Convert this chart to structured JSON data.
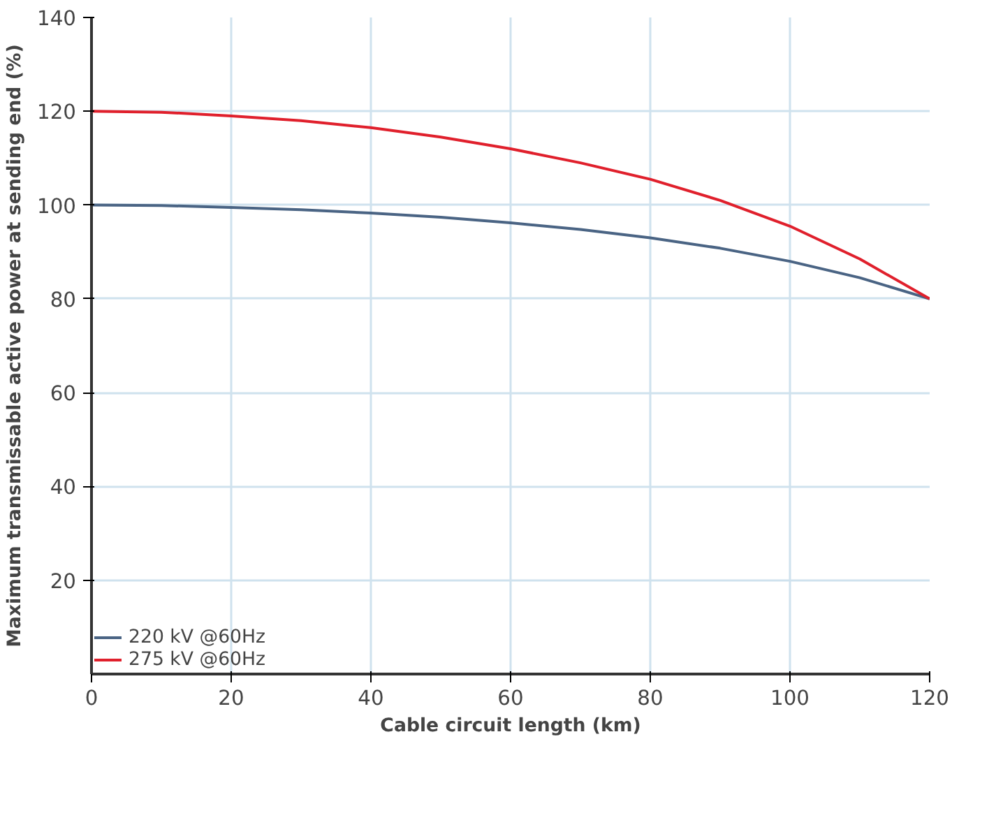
{
  "chart_data": {
    "type": "line",
    "xlabel": "Cable circuit length (km)",
    "ylabel": "Maximum transmissable active power at sending end (%)",
    "x": [
      0,
      10,
      20,
      30,
      40,
      50,
      60,
      70,
      80,
      90,
      100,
      110,
      120
    ],
    "series": [
      {
        "name": "220 kV @60Hz",
        "color": "#4a6484",
        "values": [
          100,
          99.9,
          99.5,
          99.0,
          98.3,
          97.4,
          96.2,
          94.8,
          93.0,
          90.8,
          88.0,
          84.5,
          80
        ]
      },
      {
        "name": "275 kV @60Hz",
        "color": "#e0202c",
        "values": [
          120,
          119.8,
          119,
          118,
          116.5,
          114.5,
          112,
          109,
          105.5,
          101,
          95.5,
          88.5,
          80
        ]
      }
    ],
    "xlim": [
      0,
      120
    ],
    "ylim": [
      0,
      140
    ],
    "xticks": [
      0,
      20,
      40,
      60,
      80,
      100,
      120
    ],
    "yticks": [
      20,
      40,
      60,
      80,
      100,
      120,
      140
    ],
    "grid": true,
    "legend": "bottom left",
    "marker": "none",
    "line_style": "solid"
  }
}
